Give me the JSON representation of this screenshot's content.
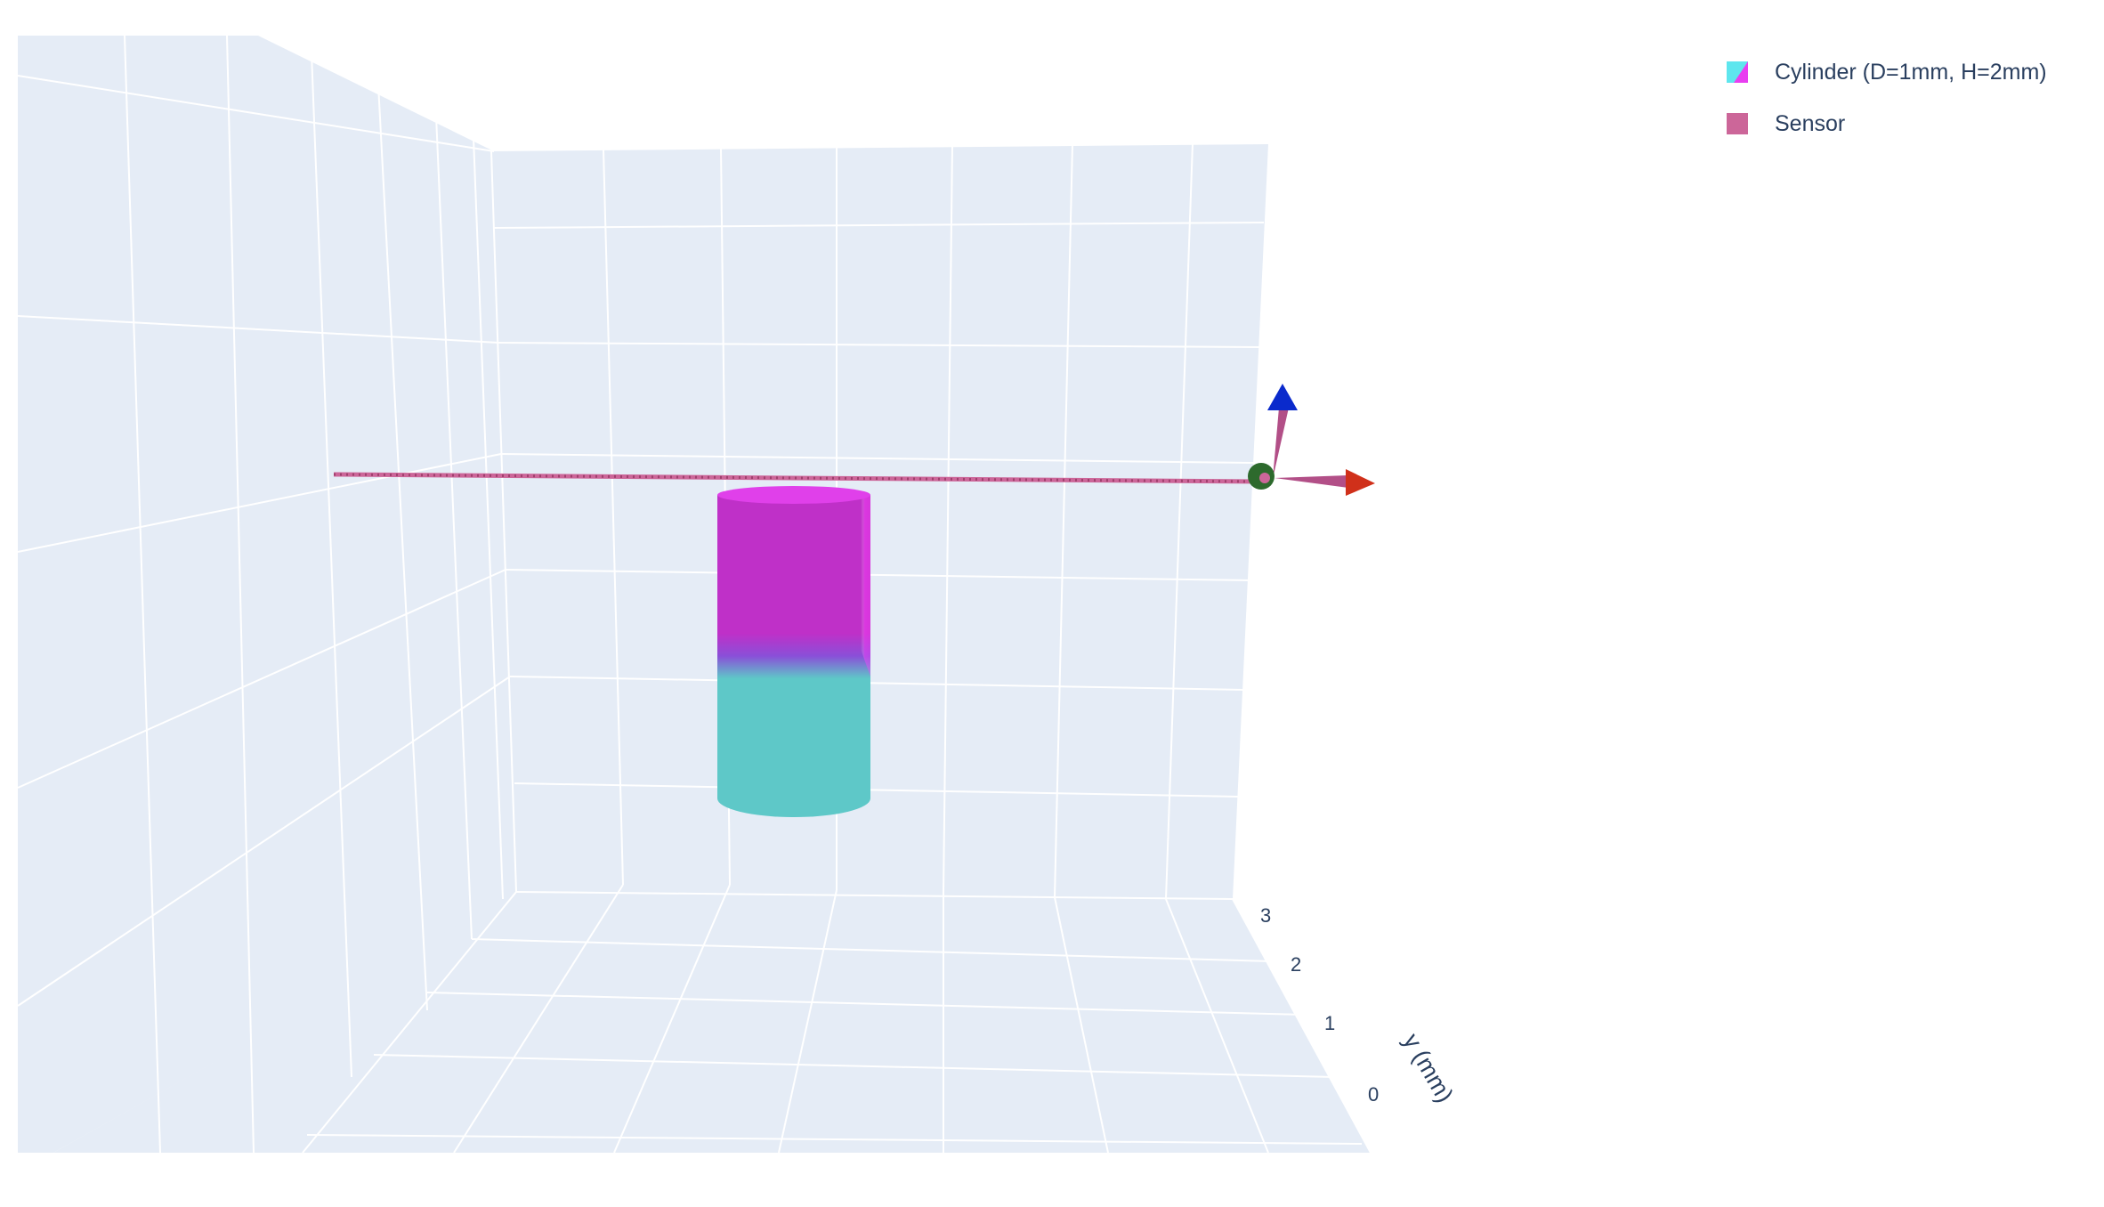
{
  "chart_data": {
    "type": "3d-scene",
    "traces": [
      {
        "name": "Cylinder (D=1mm, H=2mm)",
        "kind": "mesh",
        "diameter_mm": 1,
        "height_mm": 2,
        "colors": {
          "top": "#e83ef0",
          "bottom": "#5ec8c8"
        }
      },
      {
        "name": "Sensor",
        "kind": "path",
        "color": "#cc6699"
      }
    ],
    "axes": {
      "y": {
        "title": "y (mm)",
        "ticks": [
          "0",
          "1",
          "2",
          "3"
        ]
      }
    },
    "scene_colors": {
      "background": "#e5ecf6",
      "grid": "#ffffff",
      "x_arrow": "#d0301a",
      "z_arrow": "#0a2acc",
      "origin_marker": "#2d6a2d"
    },
    "legend": {
      "position": "top-right",
      "items": [
        {
          "label": "Cylinder (D=1mm, H=2mm)"
        },
        {
          "label": "Sensor"
        }
      ]
    }
  }
}
